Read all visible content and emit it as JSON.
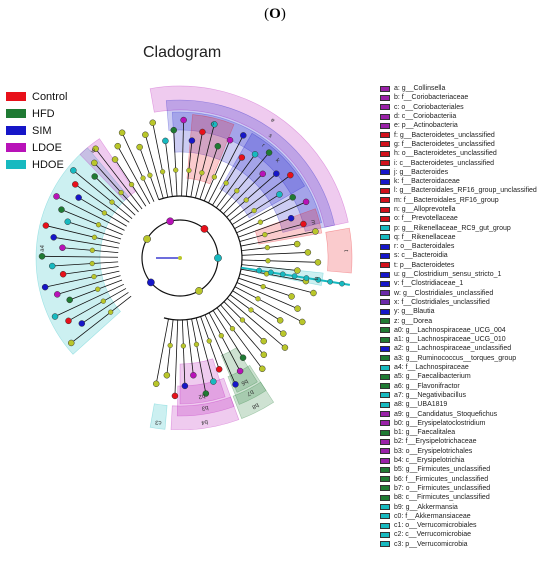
{
  "panel_label": "O",
  "title": "Cladogram",
  "colors": {
    "Control": "#e8101a",
    "HFD": "#1f7a33",
    "SIM": "#1616c8",
    "LDOE": "#b812b8",
    "HDOE": "#17b9c0",
    "node": "#b9c62a",
    "edge": "#111111"
  },
  "groups": [
    {
      "name": "Control",
      "color": "#e8101a"
    },
    {
      "name": "HFD",
      "color": "#1f7a33"
    },
    {
      "name": "SIM",
      "color": "#1616c8"
    },
    {
      "name": "LDOE",
      "color": "#b812b8"
    },
    {
      "name": "HDOE",
      "color": "#17b9c0"
    }
  ],
  "legend": [
    {
      "code": "a",
      "text": "a: g__Collinsella",
      "color": "#9a22a8"
    },
    {
      "code": "b",
      "text": "b: f__Coriobacteriaceae",
      "color": "#9a22a8"
    },
    {
      "code": "c",
      "text": "c: o__Coriobacteriales",
      "color": "#9a22a8"
    },
    {
      "code": "d",
      "text": "d: c__Coriobacteriia",
      "color": "#9a22a8"
    },
    {
      "code": "e",
      "text": "e: p__Actinobacteria",
      "color": "#9a22a8"
    },
    {
      "code": "f",
      "text": "f: g__Bacteroidetes_unclassified",
      "color": "#d0101a"
    },
    {
      "code": "g",
      "text": "g: f__Bacteroidetes_unclassified",
      "color": "#d0101a"
    },
    {
      "code": "h",
      "text": "h: o__Bacteroidetes_unclassified",
      "color": "#d0101a"
    },
    {
      "code": "i",
      "text": "i: c__Bacteroidetes_unclassified",
      "color": "#d0101a"
    },
    {
      "code": "j",
      "text": "j: g__Bacteroides",
      "color": "#1616c8"
    },
    {
      "code": "k",
      "text": "k: f__Bacteroidaceae",
      "color": "#1616c8"
    },
    {
      "code": "l",
      "text": "l: g__Bacteroidales_RF16_group_unclassified",
      "color": "#d0101a"
    },
    {
      "code": "m",
      "text": "m: f__Bacteroidales_RF16_group",
      "color": "#d0101a"
    },
    {
      "code": "n",
      "text": "n: g__Alloprevotella",
      "color": "#d0101a"
    },
    {
      "code": "o",
      "text": "o: f__Prevotellaceae",
      "color": "#d0101a"
    },
    {
      "code": "p",
      "text": "p: g__Rikenellaceae_RC9_gut_group",
      "color": "#17b9c0"
    },
    {
      "code": "q",
      "text": "q: f__Rikenellaceae",
      "color": "#17b9c0"
    },
    {
      "code": "r",
      "text": "r: o__Bacteroidales",
      "color": "#1616c8"
    },
    {
      "code": "s",
      "text": "s: c__Bacteroidia",
      "color": "#1616c8"
    },
    {
      "code": "t",
      "text": "t: p__Bacteroidetes",
      "color": "#d0101a"
    },
    {
      "code": "u",
      "text": "u: g__Clostridium_sensu_stricto_1",
      "color": "#1616c8"
    },
    {
      "code": "v",
      "text": "v: f__Clostridiaceae_1",
      "color": "#1616c8"
    },
    {
      "code": "w",
      "text": "w: g__Clostridiales_unclassified",
      "color": "#6a2aa8"
    },
    {
      "code": "x",
      "text": "x: f__Clostridiales_unclassified",
      "color": "#6a2aa8"
    },
    {
      "code": "y",
      "text": "y: g__Blautia",
      "color": "#1616c8"
    },
    {
      "code": "z",
      "text": "z: g__Dorea",
      "color": "#1f7a33"
    },
    {
      "code": "a0",
      "text": "a0: g__Lachnospiraceae_UCG_004",
      "color": "#1f7a33"
    },
    {
      "code": "a1",
      "text": "a1: g__Lachnospiraceae_UCG_010",
      "color": "#1f7a33"
    },
    {
      "code": "a2",
      "text": "a2: g__Lachnospiraceae_unclassified",
      "color": "#1616c8"
    },
    {
      "code": "a3",
      "text": "a3: g__Ruminococcus__torques_group",
      "color": "#1f7a33"
    },
    {
      "code": "a4",
      "text": "a4: f__Lachnospiraceae",
      "color": "#17b9c0"
    },
    {
      "code": "a5",
      "text": "a5: g__Faecalibacterium",
      "color": "#1f7a33"
    },
    {
      "code": "a6",
      "text": "a6: g__Flavonifractor",
      "color": "#1f7a33"
    },
    {
      "code": "a7",
      "text": "a7: g__Negativibacillus",
      "color": "#17b9c0"
    },
    {
      "code": "a8",
      "text": "a8: g__UBA1819",
      "color": "#17b9c0"
    },
    {
      "code": "a9",
      "text": "a9: g__Candidatus_Stoquefichus",
      "color": "#9a22a8"
    },
    {
      "code": "b0",
      "text": "b0: g__Erysipelatoclostridium",
      "color": "#9a22a8"
    },
    {
      "code": "b1",
      "text": "b1: g__Faecalitalea",
      "color": "#1f7a33"
    },
    {
      "code": "b2",
      "text": "b2: f__Erysipelotrichaceae",
      "color": "#9a22a8"
    },
    {
      "code": "b3",
      "text": "b3: o__Erysipelotrichales",
      "color": "#9a22a8"
    },
    {
      "code": "b4",
      "text": "b4: c__Erysipelotrichia",
      "color": "#9a22a8"
    },
    {
      "code": "b5",
      "text": "b5: g__Firmicutes_unclassified",
      "color": "#1f7a33"
    },
    {
      "code": "b6",
      "text": "b6: f__Firmicutes_unclassified",
      "color": "#1f7a33"
    },
    {
      "code": "b7",
      "text": "b7: o__Firmicutes_unclassified",
      "color": "#1f7a33"
    },
    {
      "code": "b8",
      "text": "b8: c__Firmicutes_unclassified",
      "color": "#1f7a33"
    },
    {
      "code": "b9",
      "text": "b9: g__Akkermansia",
      "color": "#17b9c0"
    },
    {
      "code": "c0",
      "text": "c0: f__Akkermansiaceae",
      "color": "#17b9c0"
    },
    {
      "code": "c1",
      "text": "c1: o__Verrucomicrobiales",
      "color": "#17b9c0"
    },
    {
      "code": "c2",
      "text": "c2: c__Verrucomicrobiae",
      "color": "#17b9c0"
    },
    {
      "code": "c3",
      "text": "c3: p__Verrucomicrobia",
      "color": "#17b9c0"
    }
  ],
  "sectors": [
    {
      "label": "e",
      "group": "LDOE",
      "start": -10,
      "end": 78,
      "level": 5
    },
    {
      "label": "t",
      "group": "Control",
      "start": 80,
      "end": 95,
      "level": 5
    },
    {
      "label": "s",
      "group": "SIM",
      "start": -5,
      "end": 78,
      "level": 4
    },
    {
      "label": "r",
      "group": "SIM",
      "start": -3,
      "end": 76,
      "level": 3
    },
    {
      "label": "k",
      "group": "SIM",
      "start": 30,
      "end": 60,
      "level": 2
    },
    {
      "label": "o",
      "group": "Control",
      "start": 5,
      "end": 22,
      "level": 2
    },
    {
      "label": "m",
      "group": "Control",
      "start": 70,
      "end": 80,
      "level": 2
    },
    {
      "label": "q",
      "group": "HDOE",
      "start": 96,
      "end": 101,
      "level": 2
    },
    {
      "label": "a4",
      "group": "HDOE",
      "start": 228,
      "end": 320,
      "level": 2
    },
    {
      "label": "b4",
      "group": "LDOE",
      "start": 160,
      "end": 183,
      "level": 5
    },
    {
      "label": "b3",
      "group": "LDOE",
      "start": 160,
      "end": 181,
      "level": 4
    },
    {
      "label": "b2",
      "group": "LDOE",
      "start": 162,
      "end": 180,
      "level": 3
    },
    {
      "label": "b8",
      "group": "HFD",
      "start": 147,
      "end": 159,
      "level": 5
    },
    {
      "label": "b7",
      "group": "HFD",
      "start": 147,
      "end": 158,
      "level": 4
    },
    {
      "label": "b6",
      "group": "HFD",
      "start": 148,
      "end": 157,
      "level": 3
    },
    {
      "label": "c3",
      "group": "HDOE",
      "start": 185,
      "end": 190,
      "level": 5
    },
    {
      "label": "w",
      "group": "LDOE",
      "start": 316,
      "end": 326,
      "level": 2
    }
  ]
}
